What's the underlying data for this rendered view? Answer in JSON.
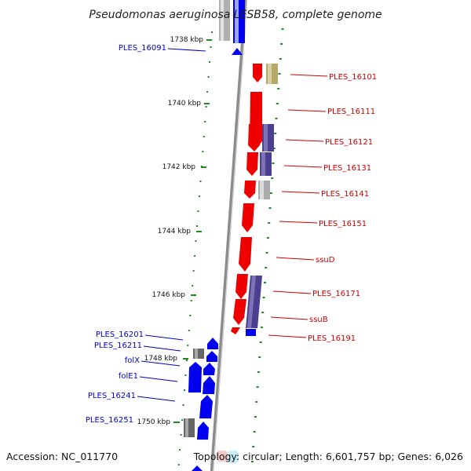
{
  "header": {
    "title": "Pseudomonas aeruginosa LESB58, complete genome"
  },
  "footer": {
    "accession": "Accession: NC_011770",
    "topology": "Topology: circular; Length: 6,601,757 bp; Genes: 6,026"
  },
  "colors": {
    "forward_gene": "#ee0000",
    "reverse_gene": "#0000ee",
    "purple_feature": "#4d3f8f",
    "olive_feature": "#b5a86a",
    "gray_feature": "#aaaaaa",
    "dark_gray_feature": "#666666",
    "backbone": "#8c8c8c",
    "gc_dots": "#1f8a1f",
    "left_label_line": "#0000cc",
    "right_label_line": "#cc0000"
  },
  "scale_marks": [
    {
      "label": "1738 kbp"
    },
    {
      "label": "1740 kbp"
    },
    {
      "label": "1742 kbp"
    },
    {
      "label": "1744 kbp"
    },
    {
      "label": "1746 kbp"
    },
    {
      "label": "1748 kbp"
    },
    {
      "label": "1750 kbp"
    }
  ],
  "left_labels": [
    {
      "label": "PLES_16091"
    },
    {
      "label": "PLES_16201"
    },
    {
      "label": "PLES_16211"
    },
    {
      "label": "folX"
    },
    {
      "label": "folE1"
    },
    {
      "label": "PLES_16241"
    },
    {
      "label": "PLES_16251"
    }
  ],
  "right_labels": [
    {
      "label": "PLES_16101"
    },
    {
      "label": "PLES_16111"
    },
    {
      "label": "PLES_16121"
    },
    {
      "label": "PLES_16131"
    },
    {
      "label": "PLES_16141"
    },
    {
      "label": "PLES_16151"
    },
    {
      "label": "ssuD"
    },
    {
      "label": "PLES_16171"
    },
    {
      "label": "ssuB"
    },
    {
      "label": "PLES_16191"
    }
  ]
}
